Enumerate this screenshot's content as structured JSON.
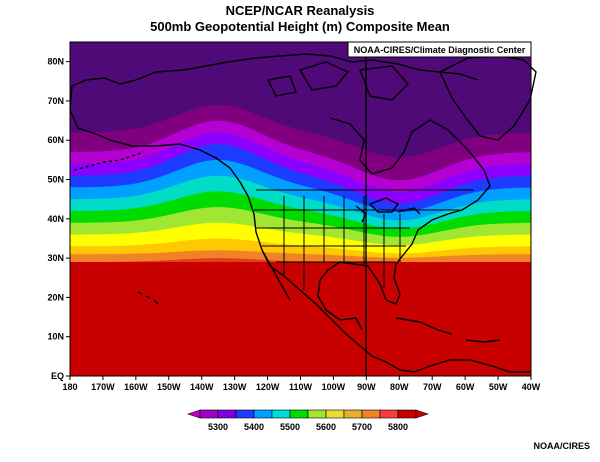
{
  "title": "NCEP/NCAR Reanalysis",
  "subtitle": "500mb Geopotential Height (m) Composite Mean",
  "inset_label": "NOAA-CIRES/Climate Diagnostic Center",
  "credit": "NOAA/CIRES",
  "map": {
    "lat_ticks": [
      "EQ",
      "10N",
      "20N",
      "30N",
      "40N",
      "50N",
      "60N",
      "70N",
      "80N"
    ],
    "lon_ticks": [
      "180",
      "170W",
      "160W",
      "150W",
      "140W",
      "130W",
      "120W",
      "110W",
      "100W",
      "90W",
      "80W",
      "70W",
      "60W",
      "50W",
      "40W"
    ],
    "lat_range": [
      0,
      85
    ],
    "lon_range": [
      -180,
      -40
    ]
  },
  "colorbar": {
    "labels": [
      "5300",
      "5400",
      "5500",
      "5600",
      "5700",
      "5800"
    ],
    "colors": [
      "#a000c8",
      "#8200dc",
      "#1e3cff",
      "#00a0ff",
      "#00dcdc",
      "#00dc00",
      "#a0e632",
      "#e6dc32",
      "#e6af2d",
      "#f08228",
      "#fa3c3c",
      "#c80000"
    ]
  }
}
